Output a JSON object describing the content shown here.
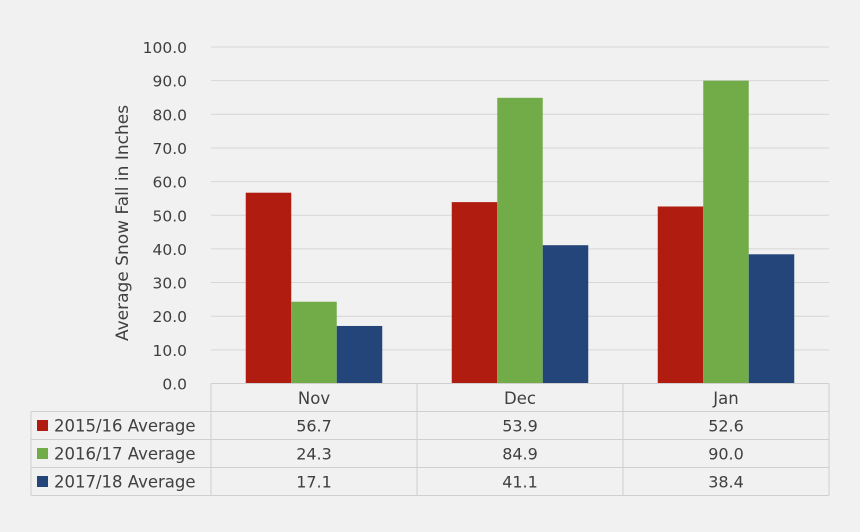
{
  "chart_data": {
    "type": "bar",
    "ylabel": "Average Snow Fall in Inches",
    "ylim": [
      0,
      100
    ],
    "yticks": [
      "0.0",
      "10.0",
      "20.0",
      "30.0",
      "40.0",
      "50.0",
      "60.0",
      "70.0",
      "80.0",
      "90.0",
      "100.0"
    ],
    "grid": true,
    "legend": "data-table",
    "categories": [
      "Nov",
      "Dec",
      "Jan"
    ],
    "series": [
      {
        "name": "2015/16 Average",
        "color": "#b01c10",
        "values": [
          56.7,
          53.9,
          52.6
        ],
        "labels": [
          "56.7",
          "53.9",
          "52.6"
        ]
      },
      {
        "name": "2016/17 Average",
        "color": "#72ac48",
        "values": [
          24.3,
          84.9,
          90.0
        ],
        "labels": [
          "24.3",
          "84.9",
          "90.0"
        ]
      },
      {
        "name": "2017/18 Average",
        "color": "#24457a",
        "values": [
          17.1,
          41.1,
          38.4
        ],
        "labels": [
          "17.1",
          "41.1",
          "38.4"
        ]
      }
    ]
  }
}
